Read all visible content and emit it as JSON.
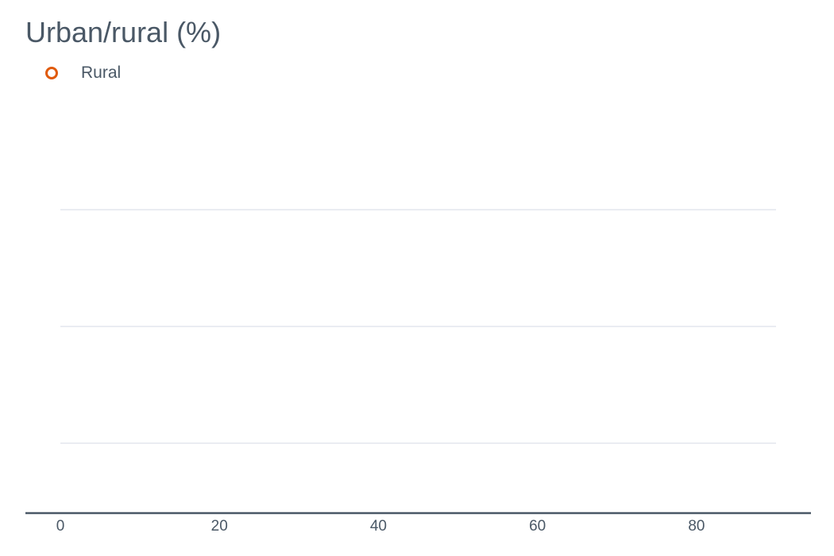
{
  "chart_data": {
    "type": "scatter",
    "title": "Urban/rural (%)",
    "xlabel": "",
    "ylabel": "",
    "xlim": [
      0,
      90
    ],
    "x_ticks": [
      "0",
      "20",
      "40",
      "60",
      "80"
    ],
    "x_tick_values": [
      0,
      20,
      40,
      60,
      80
    ],
    "grid": "horizontal",
    "grid_line_count": 3,
    "legend_position": "top-left",
    "series": [
      {
        "name": "Rural",
        "marker": "hollow-circle",
        "color": "#e05a0c",
        "points": []
      }
    ]
  },
  "colors": {
    "text": "#4a5866",
    "gridline": "#d5d8e6",
    "axis": "#4a5866",
    "series_rural": "#e05a0c"
  }
}
